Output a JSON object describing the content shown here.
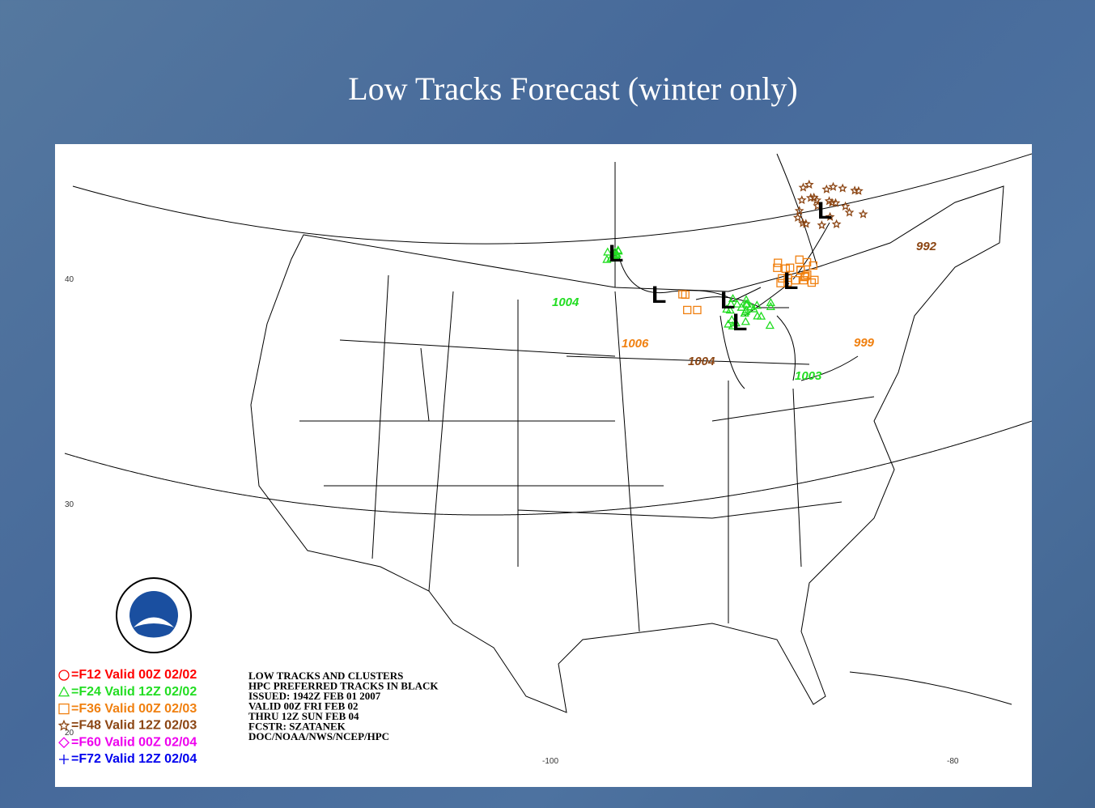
{
  "title": "Low Tracks Forecast (winter only)",
  "map": {
    "legend": [
      {
        "label": "=F12 Valid 00Z 02/02",
        "color": "#ff0000",
        "symbol": "circle"
      },
      {
        "label": "=F24 Valid 12Z 02/02",
        "color": "#22dd22",
        "symbol": "triangle"
      },
      {
        "label": "=F36 Valid 00Z 02/03",
        "color": "#f08010",
        "symbol": "square"
      },
      {
        "label": "=F48 Valid 12Z 02/03",
        "color": "#8b4513",
        "symbol": "star"
      },
      {
        "label": "=F60 Valid 00Z 02/04",
        "color": "#ee00ee",
        "symbol": "diamond"
      },
      {
        "label": "=F72 Valid 12Z 02/04",
        "color": "#0000ee",
        "symbol": "plus"
      }
    ],
    "info": [
      "LOW TRACKS AND CLUSTERS",
      "HPC PREFERRED TRACKS IN BLACK",
      "ISSUED: 1942Z FEB 01 2007",
      "VALID 00Z FRI FEB 02",
      "THRU 12Z SUN FEB 04",
      "FCSTR: SZATANEK",
      "DOC/NOAA/NWS/NCEP/HPC"
    ],
    "pressure_labels": [
      {
        "text": "1004",
        "color": "#22dd22"
      },
      {
        "text": "1006",
        "color": "#f08010"
      },
      {
        "text": "1004",
        "color": "#8b4513"
      },
      {
        "text": "999",
        "color": "#f08010"
      },
      {
        "text": "1003",
        "color": "#22dd22"
      },
      {
        "text": "992",
        "color": "#8b4513"
      }
    ],
    "low_marker": "L",
    "lat_labels": [
      "40",
      "30",
      "20"
    ],
    "lon_labels": [
      "-100",
      "-80"
    ]
  }
}
